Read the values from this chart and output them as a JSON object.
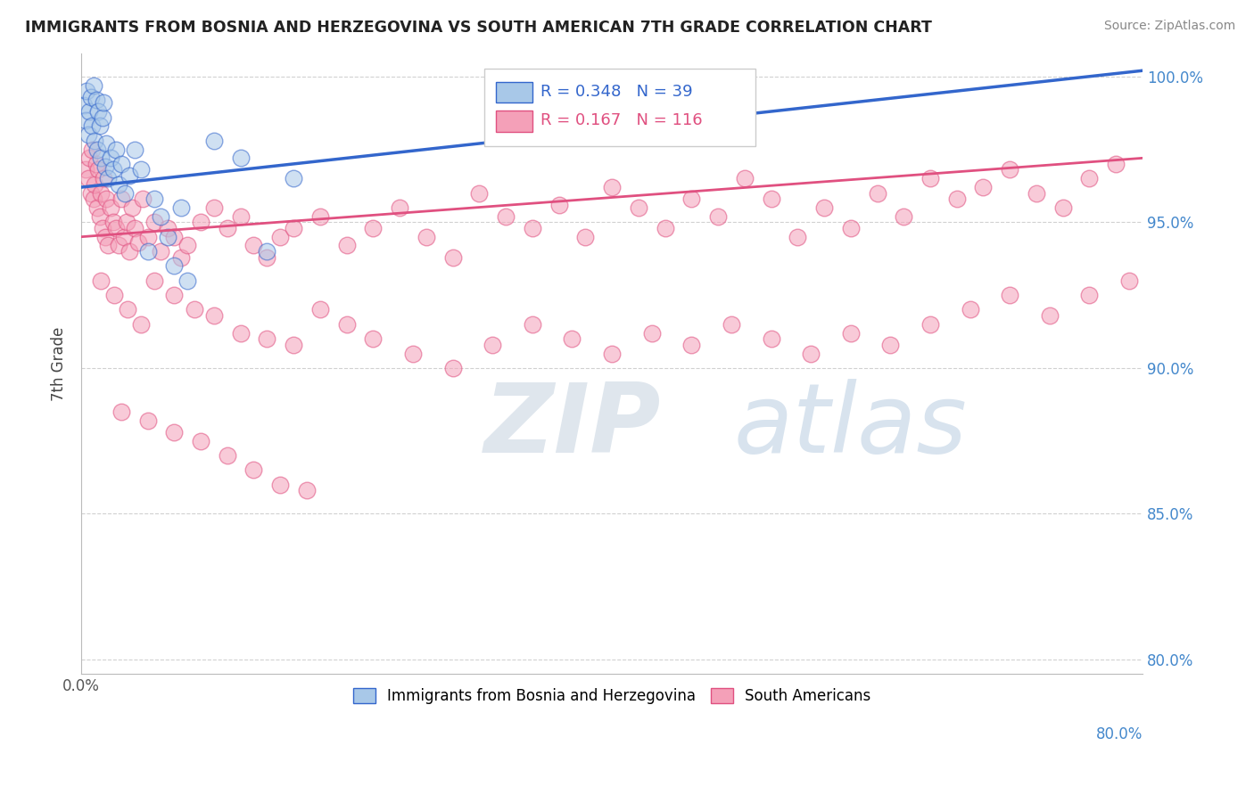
{
  "title": "IMMIGRANTS FROM BOSNIA AND HERZEGOVINA VS SOUTH AMERICAN 7TH GRADE CORRELATION CHART",
  "source": "Source: ZipAtlas.com",
  "ylabel": "7th Grade",
  "xmin": 0.0,
  "xmax": 0.8,
  "ymin": 0.795,
  "ymax": 1.008,
  "blue_R": 0.348,
  "blue_N": 39,
  "pink_R": 0.167,
  "pink_N": 116,
  "blue_color": "#a8c8e8",
  "pink_color": "#f4a0b8",
  "blue_line_color": "#3366cc",
  "pink_line_color": "#e05080",
  "legend_label_blue": "Immigrants from Bosnia and Herzegovina",
  "legend_label_pink": "South Americans",
  "watermark_zip": "ZIP",
  "watermark_atlas": "atlas",
  "ytick_labels": [
    "80.0%",
    "85.0%",
    "90.0%",
    "95.0%",
    "100.0%"
  ],
  "ytick_values": [
    0.8,
    0.85,
    0.9,
    0.95,
    1.0
  ],
  "xtick_values": [
    0.0,
    0.1,
    0.2,
    0.3,
    0.4,
    0.5,
    0.6,
    0.7,
    0.8
  ],
  "blue_trend_x": [
    0.0,
    0.8
  ],
  "blue_trend_y": [
    0.962,
    1.002
  ],
  "pink_trend_x": [
    0.0,
    0.8
  ],
  "pink_trend_y": [
    0.945,
    0.972
  ],
  "blue_x": [
    0.002,
    0.003,
    0.004,
    0.005,
    0.006,
    0.007,
    0.008,
    0.009,
    0.01,
    0.011,
    0.012,
    0.013,
    0.014,
    0.015,
    0.016,
    0.017,
    0.018,
    0.019,
    0.02,
    0.022,
    0.024,
    0.026,
    0.028,
    0.03,
    0.033,
    0.036,
    0.04,
    0.045,
    0.05,
    0.06,
    0.07,
    0.08,
    0.1,
    0.12,
    0.14,
    0.16,
    0.055,
    0.065,
    0.075
  ],
  "blue_y": [
    0.99,
    0.985,
    0.995,
    0.98,
    0.988,
    0.993,
    0.983,
    0.997,
    0.978,
    0.992,
    0.975,
    0.988,
    0.983,
    0.972,
    0.986,
    0.991,
    0.969,
    0.977,
    0.965,
    0.972,
    0.968,
    0.975,
    0.963,
    0.97,
    0.96,
    0.966,
    0.975,
    0.968,
    0.94,
    0.952,
    0.935,
    0.93,
    0.978,
    0.972,
    0.94,
    0.965,
    0.958,
    0.945,
    0.955
  ],
  "pink_x": [
    0.003,
    0.005,
    0.006,
    0.007,
    0.008,
    0.009,
    0.01,
    0.011,
    0.012,
    0.013,
    0.014,
    0.015,
    0.016,
    0.017,
    0.018,
    0.019,
    0.02,
    0.022,
    0.024,
    0.026,
    0.028,
    0.03,
    0.032,
    0.034,
    0.036,
    0.038,
    0.04,
    0.043,
    0.046,
    0.05,
    0.055,
    0.06,
    0.065,
    0.07,
    0.075,
    0.08,
    0.09,
    0.1,
    0.11,
    0.12,
    0.13,
    0.14,
    0.15,
    0.16,
    0.18,
    0.2,
    0.22,
    0.24,
    0.26,
    0.28,
    0.3,
    0.32,
    0.34,
    0.36,
    0.38,
    0.4,
    0.42,
    0.44,
    0.46,
    0.48,
    0.5,
    0.52,
    0.54,
    0.56,
    0.58,
    0.6,
    0.62,
    0.64,
    0.66,
    0.68,
    0.7,
    0.72,
    0.74,
    0.76,
    0.78,
    0.015,
    0.025,
    0.035,
    0.045,
    0.055,
    0.07,
    0.085,
    0.1,
    0.12,
    0.14,
    0.16,
    0.18,
    0.2,
    0.22,
    0.25,
    0.28,
    0.31,
    0.34,
    0.37,
    0.4,
    0.43,
    0.46,
    0.49,
    0.52,
    0.55,
    0.58,
    0.61,
    0.64,
    0.67,
    0.7,
    0.73,
    0.76,
    0.79,
    0.03,
    0.05,
    0.07,
    0.09,
    0.11,
    0.13,
    0.15,
    0.17
  ],
  "pink_y": [
    0.968,
    0.965,
    0.972,
    0.96,
    0.975,
    0.958,
    0.963,
    0.97,
    0.955,
    0.968,
    0.952,
    0.96,
    0.948,
    0.965,
    0.945,
    0.958,
    0.942,
    0.955,
    0.95,
    0.948,
    0.942,
    0.958,
    0.945,
    0.95,
    0.94,
    0.955,
    0.948,
    0.943,
    0.958,
    0.945,
    0.95,
    0.94,
    0.948,
    0.945,
    0.938,
    0.942,
    0.95,
    0.955,
    0.948,
    0.952,
    0.942,
    0.938,
    0.945,
    0.948,
    0.952,
    0.942,
    0.948,
    0.955,
    0.945,
    0.938,
    0.96,
    0.952,
    0.948,
    0.956,
    0.945,
    0.962,
    0.955,
    0.948,
    0.958,
    0.952,
    0.965,
    0.958,
    0.945,
    0.955,
    0.948,
    0.96,
    0.952,
    0.965,
    0.958,
    0.962,
    0.968,
    0.96,
    0.955,
    0.965,
    0.97,
    0.93,
    0.925,
    0.92,
    0.915,
    0.93,
    0.925,
    0.92,
    0.918,
    0.912,
    0.91,
    0.908,
    0.92,
    0.915,
    0.91,
    0.905,
    0.9,
    0.908,
    0.915,
    0.91,
    0.905,
    0.912,
    0.908,
    0.915,
    0.91,
    0.905,
    0.912,
    0.908,
    0.915,
    0.92,
    0.925,
    0.918,
    0.925,
    0.93,
    0.885,
    0.882,
    0.878,
    0.875,
    0.87,
    0.865,
    0.86,
    0.858
  ]
}
